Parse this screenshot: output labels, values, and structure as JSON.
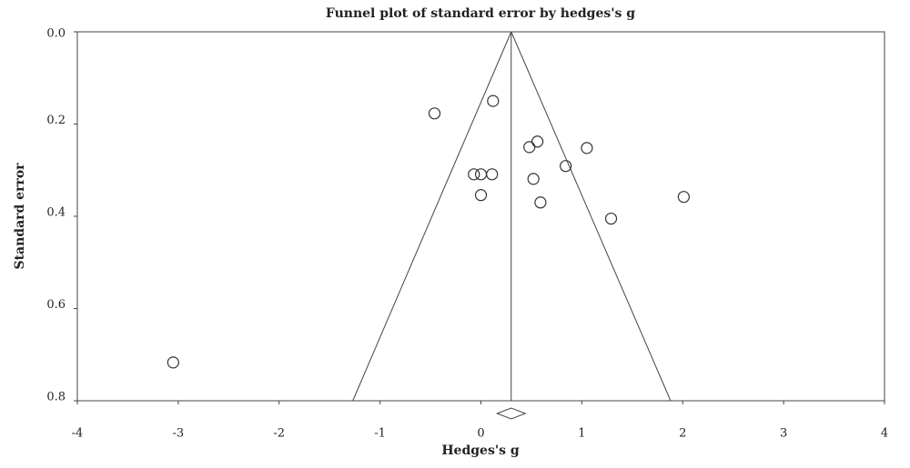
{
  "chart_data": {
    "type": "scatter",
    "title": "Funnel plot of standard error by hedges's g",
    "x_label": "Hedges's g",
    "y_label": "Standard error",
    "x": [
      -0.46,
      0.12,
      0.56,
      0.48,
      1.05,
      0.84,
      -0.07,
      0.0,
      0.11,
      0.52,
      0.0,
      2.01,
      0.59,
      1.29,
      -3.05
    ],
    "y": [
      0.177,
      0.15,
      0.238,
      0.25,
      0.252,
      0.291,
      0.309,
      0.309,
      0.309,
      0.319,
      0.354,
      0.358,
      0.37,
      0.405,
      0.717
    ],
    "summary_effect": 0.3,
    "summary_ci": [
      0.16,
      0.44
    ],
    "funnel_bottom_x": [
      -1.27,
      1.88
    ],
    "xlim": [
      -4,
      4
    ],
    "xticks": [
      -4,
      -3,
      -2,
      -1,
      0,
      1,
      2,
      3,
      4
    ],
    "ylim": [
      0,
      0.8
    ],
    "yticks": [
      {
        "value": 0,
        "label": "0.0"
      },
      0.2,
      0.4,
      0.6,
      0.8
    ],
    "y_inverted": true,
    "color": "#333333"
  }
}
